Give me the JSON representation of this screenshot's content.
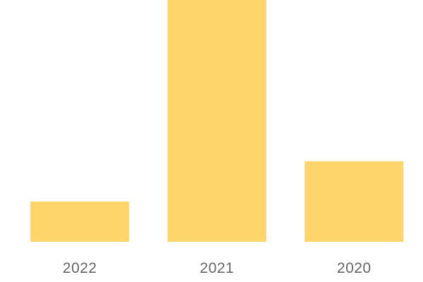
{
  "chart_data": {
    "type": "bar",
    "categories": [
      "2022",
      "2021",
      "2020"
    ],
    "values": [
      1,
      6,
      2
    ],
    "title": "",
    "xlabel": "",
    "ylabel": "",
    "ylim": [
      0,
      6
    ],
    "grid": false,
    "bar_color": "#FDD56B",
    "tick_color": "#666666"
  }
}
